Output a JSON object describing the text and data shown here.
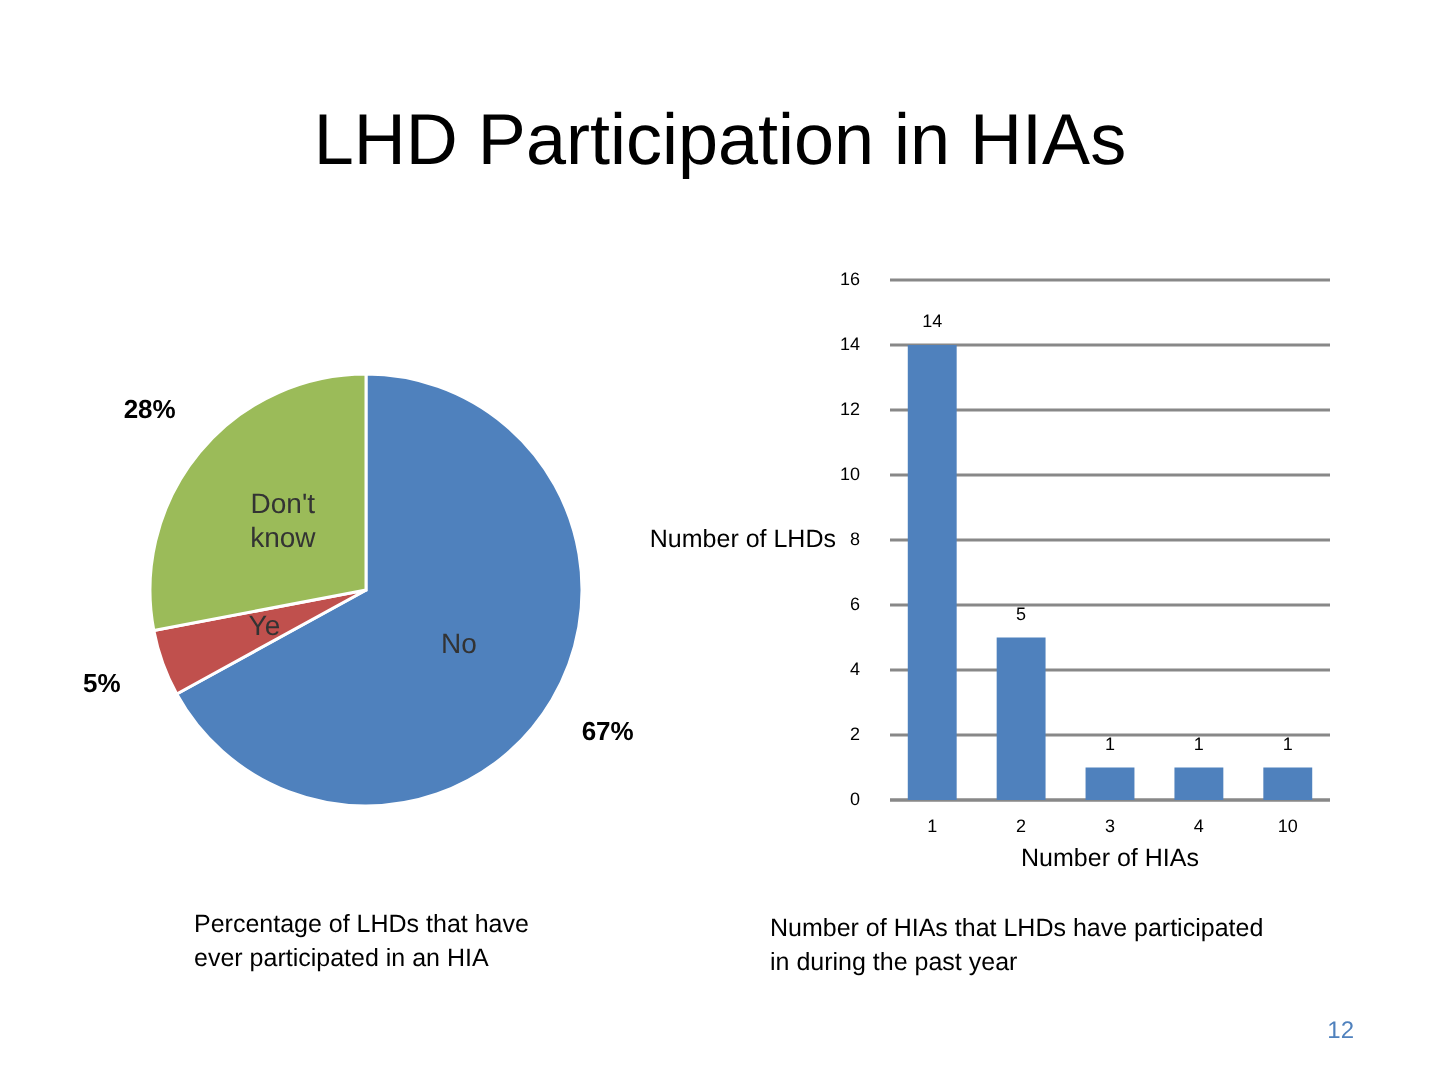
{
  "chart_data": [
    {
      "type": "pie",
      "title": "LHD Participation in HIAs",
      "categories": [
        "No",
        "Ye",
        "Don't know"
      ],
      "values": [
        67,
        5,
        28
      ],
      "colors": [
        "#4f81bd",
        "#c0504d",
        "#9bbb59"
      ],
      "value_labels": [
        "67%",
        "5%",
        "28%"
      ],
      "annotations": [
        "Percentage of LHDs that have ever participated in an HIA"
      ]
    },
    {
      "type": "bar",
      "categories": [
        "1",
        "2",
        "3",
        "4",
        "10"
      ],
      "values": [
        14,
        5,
        1,
        1,
        1
      ],
      "color": "#4f81bd",
      "ylim": [
        0,
        16
      ],
      "yticks": [
        0,
        2,
        4,
        6,
        8,
        10,
        12,
        14,
        16
      ],
      "grid": "y",
      "data_labels": true,
      "xlabel": "Number of HIAs",
      "ylabel": "Number of LHDs",
      "annotations": [
        "Number of HIAs that LHDs have participated in during the past year",
        "12"
      ]
    }
  ]
}
